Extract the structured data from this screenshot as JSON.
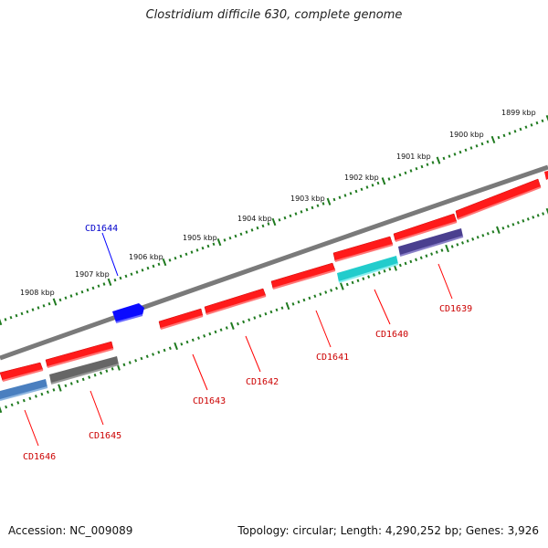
{
  "title": "Clostridium difficile 630, complete genome",
  "footer": {
    "accession": "Accession: NC_009089",
    "summary": "Topology: circular; Length: 4,290,252 bp; Genes: 3,926"
  },
  "colors": {
    "backbone": "#7a7a7a",
    "ticks": "#1f7a1f",
    "gene_red": "#ff1a1a",
    "gene_gray": "#666666",
    "gene_steelblue": "#4a7fbf",
    "gene_blue": "#0a0aff",
    "gene_cyan": "#22cccc",
    "gene_slate": "#4a3f8f",
    "label_red": "#cc0000",
    "label_blue": "#0000cc"
  },
  "kbp_labels": [
    "1899 kbp",
    "1900 kbp",
    "1901 kbp",
    "1902 kbp",
    "1903 kbp",
    "1904 kbp",
    "1905 kbp",
    "1906 kbp",
    "1907 kbp",
    "1908 kbp"
  ],
  "gene_labels": [
    "CD1639",
    "CD1640",
    "CD1641",
    "CD1642",
    "CD1643",
    "CD1644",
    "CD1645",
    "CD1646"
  ]
}
